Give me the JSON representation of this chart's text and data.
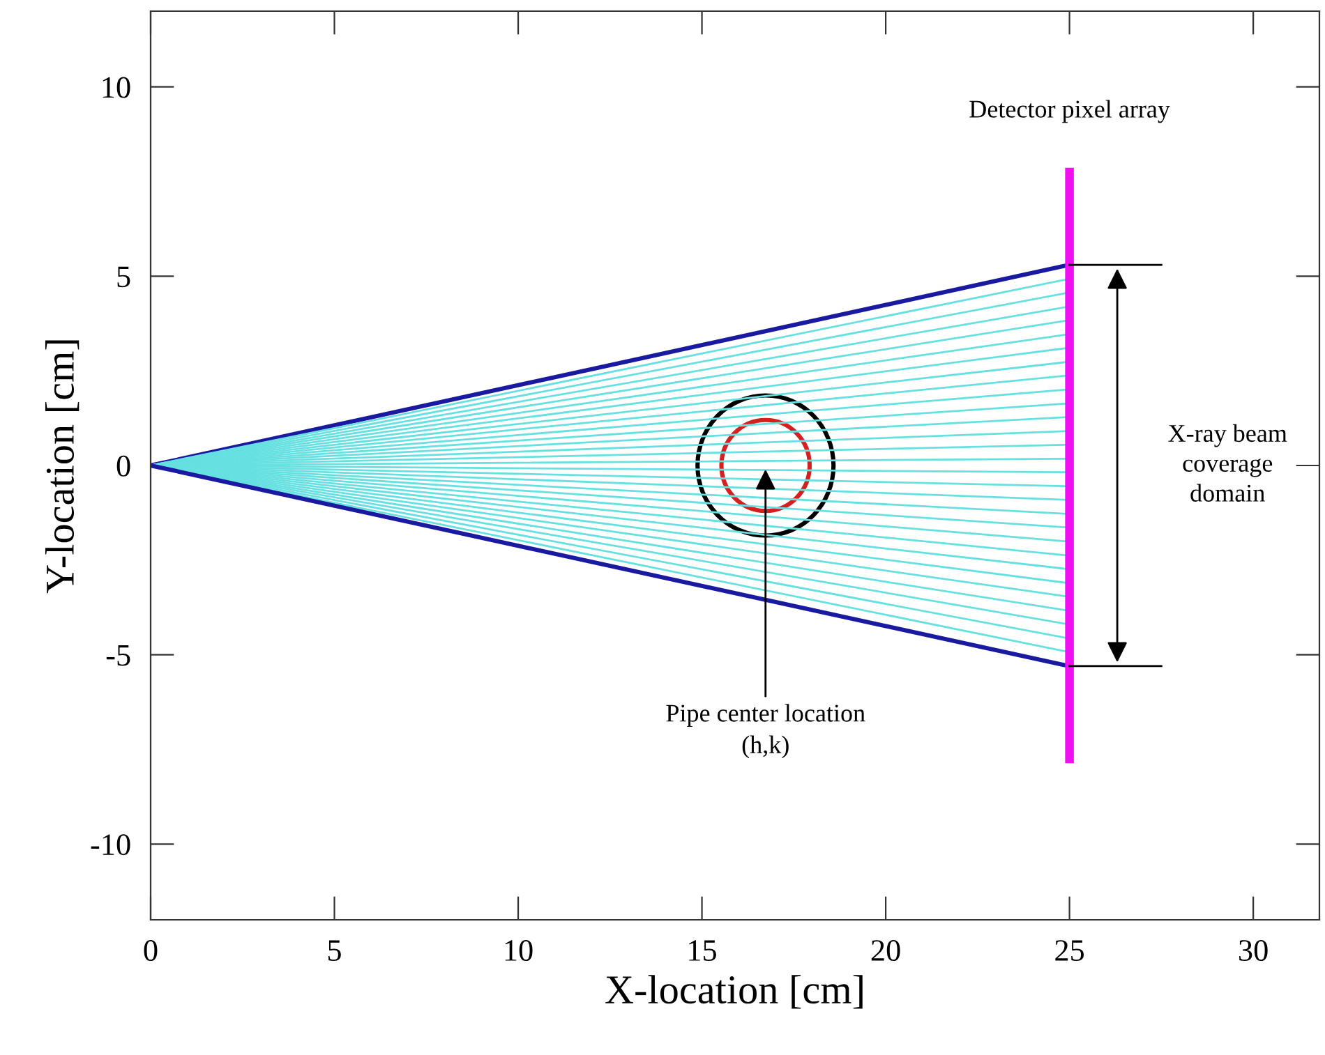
{
  "chart_data": {
    "type": "line",
    "xlabel": "X-location [cm]",
    "ylabel": "Y-location [cm]",
    "xlim": [
      0,
      31.8
    ],
    "ylim": [
      -12,
      12
    ],
    "xticks": [
      0,
      5,
      10,
      15,
      20,
      25,
      30
    ],
    "yticks": [
      -10,
      -5,
      0,
      5,
      10
    ],
    "grid": false,
    "legend": false,
    "x": [
      0,
      25
    ],
    "series": [
      {
        "color": "#1a1aa0",
        "values": [
          0,
          5.3
        ]
      },
      {
        "color": "#66e0e0",
        "values": [
          0,
          4.93
        ]
      },
      {
        "color": "#66e0e0",
        "values": [
          0,
          4.57
        ]
      },
      {
        "color": "#66e0e0",
        "values": [
          0,
          4.2
        ]
      },
      {
        "color": "#66e0e0",
        "values": [
          0,
          3.84
        ]
      },
      {
        "color": "#66e0e0",
        "values": [
          0,
          3.47
        ]
      },
      {
        "color": "#66e0e0",
        "values": [
          0,
          3.11
        ]
      },
      {
        "color": "#66e0e0",
        "values": [
          0,
          2.74
        ]
      },
      {
        "color": "#66e0e0",
        "values": [
          0,
          2.38
        ]
      },
      {
        "color": "#66e0e0",
        "values": [
          0,
          2.01
        ]
      },
      {
        "color": "#66e0e0",
        "values": [
          0,
          1.64
        ]
      },
      {
        "color": "#66e0e0",
        "values": [
          0,
          1.28
        ]
      },
      {
        "color": "#66e0e0",
        "values": [
          0,
          0.91
        ]
      },
      {
        "color": "#66e0e0",
        "values": [
          0,
          0.55
        ]
      },
      {
        "color": "#66e0e0",
        "values": [
          0,
          0.18
        ]
      },
      {
        "color": "#66e0e0",
        "values": [
          0,
          -0.18
        ]
      },
      {
        "color": "#66e0e0",
        "values": [
          0,
          -0.55
        ]
      },
      {
        "color": "#66e0e0",
        "values": [
          0,
          -0.91
        ]
      },
      {
        "color": "#66e0e0",
        "values": [
          0,
          -1.28
        ]
      },
      {
        "color": "#66e0e0",
        "values": [
          0,
          -1.64
        ]
      },
      {
        "color": "#66e0e0",
        "values": [
          0,
          -2.01
        ]
      },
      {
        "color": "#66e0e0",
        "values": [
          0,
          -2.38
        ]
      },
      {
        "color": "#66e0e0",
        "values": [
          0,
          -2.74
        ]
      },
      {
        "color": "#66e0e0",
        "values": [
          0,
          -3.11
        ]
      },
      {
        "color": "#66e0e0",
        "values": [
          0,
          -3.47
        ]
      },
      {
        "color": "#66e0e0",
        "values": [
          0,
          -3.84
        ]
      },
      {
        "color": "#66e0e0",
        "values": [
          0,
          -4.2
        ]
      },
      {
        "color": "#66e0e0",
        "values": [
          0,
          -4.57
        ]
      },
      {
        "color": "#66e0e0",
        "values": [
          0,
          -4.93
        ]
      },
      {
        "color": "#1a1aa0",
        "values": [
          0,
          -5.3
        ]
      },
      {
        "color": "#ee10ee",
        "x": [
          25,
          25
        ],
        "values": [
          -7.75,
          7.75
        ]
      }
    ],
    "annotations": [
      "Detector pixel array",
      {
        "text": "Pipe center location\n(h,k)",
        "x": 16.73,
        "y": 0
      },
      "X-ray beam\ncoverage\ndomain"
    ]
  }
}
